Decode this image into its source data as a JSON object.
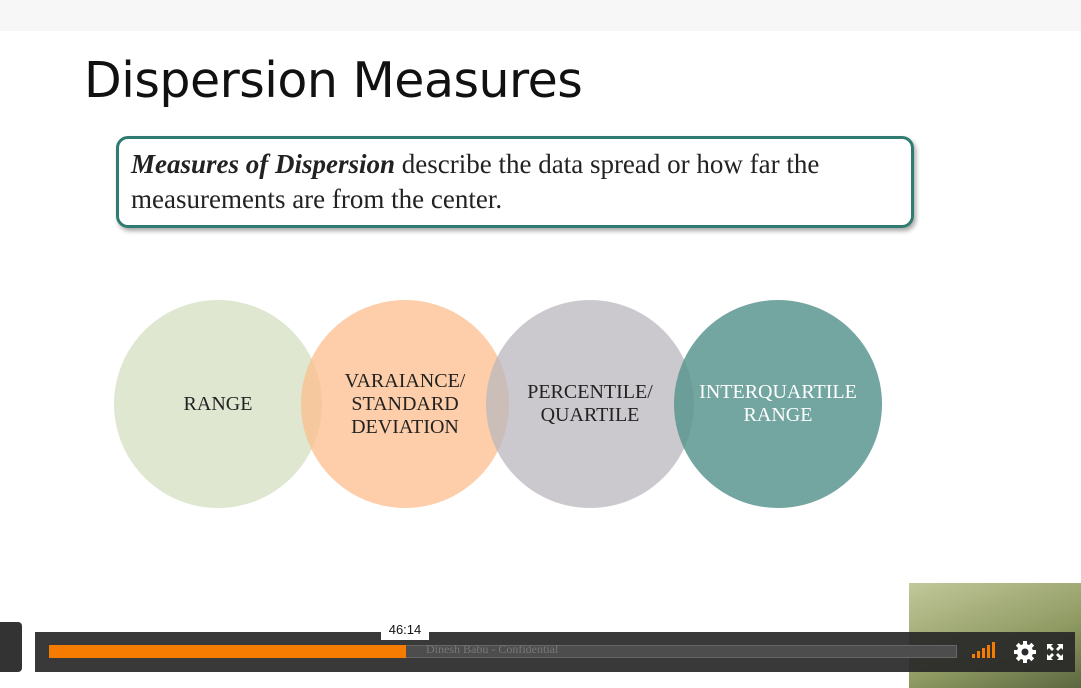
{
  "slide": {
    "title": "Dispersion Measures",
    "definition": {
      "term": "Measures of Dispersion",
      "text": " describe the data spread or how far the measurements are from the center."
    },
    "circles": [
      {
        "lines": [
          "RANGE"
        ]
      },
      {
        "lines": [
          "VARAIANCE/",
          "STANDARD",
          "DEVIATION"
        ]
      },
      {
        "lines": [
          "PERCENTILE/",
          "QUARTILE"
        ]
      },
      {
        "lines": [
          "INTERQUARTILE",
          "RANGE"
        ]
      }
    ],
    "footer": "Dinesh Babu - Confidential"
  },
  "player": {
    "hover_time": "46:14"
  }
}
